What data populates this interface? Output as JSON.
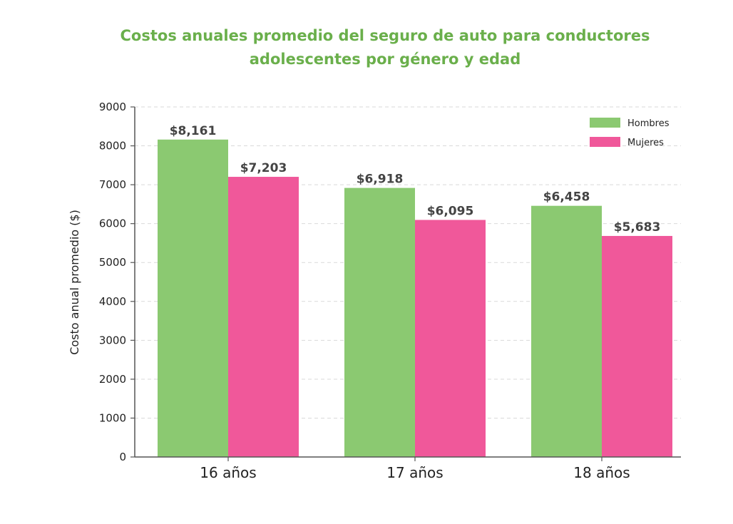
{
  "chart_data": {
    "type": "bar",
    "title": "Costos anuales promedio del seguro de auto para conductores adolescentes por género y edad",
    "categories": [
      "16 años",
      "17 años",
      "18 años"
    ],
    "series": [
      {
        "name": "Hombres",
        "values": [
          8161,
          6918,
          6458
        ],
        "labels": [
          "$8,161",
          "$6,918",
          "$6,458"
        ],
        "color": "#8bc971"
      },
      {
        "name": "Mujeres",
        "values": [
          7203,
          6095,
          5683
        ],
        "labels": [
          "$7,203",
          "$6,095",
          "$5,683"
        ],
        "color": "#f0589a"
      }
    ],
    "xlabel": "",
    "ylabel": "Costo anual promedio ($)",
    "ylim": [
      0,
      9000
    ],
    "yticks": [
      "0",
      "1000",
      "2000",
      "3000",
      "4000",
      "5000",
      "6000",
      "7000",
      "8000",
      "9000"
    ],
    "grid": "horizontal dashed",
    "legend": "top-right"
  }
}
